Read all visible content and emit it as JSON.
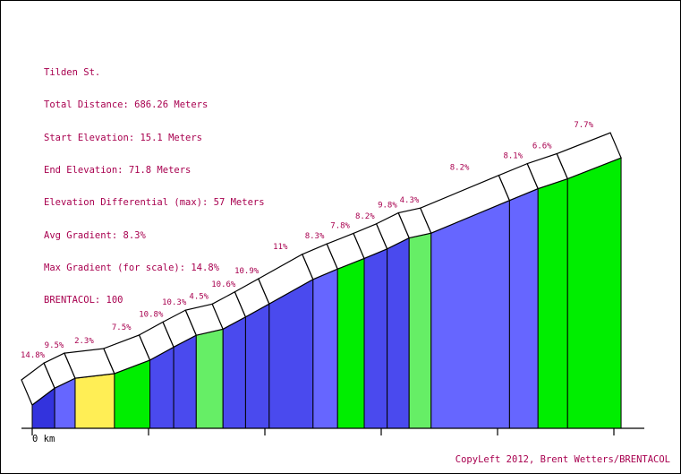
{
  "info": {
    "title": "Tilden St.",
    "total_distance": "Total Distance: 686.26 Meters",
    "start_elevation": "Start Elevation: 15.1 Meters",
    "end_elevation": "End Elevation: 71.8 Meters",
    "elevation_diff": "Elevation Differential (max): 57 Meters",
    "avg_gradient": "Avg Gradient: 8.3%",
    "max_gradient": "Max Gradient (for scale): 14.8%",
    "brentacol": "BRENTACOL: 100"
  },
  "credit": "CopyLeft 2012, Brent Wetters/BRENTACOL",
  "colors": {
    "dark_blue": "#3333dd",
    "medium_blue": "#4a4aee",
    "light_blue": "#6666ff",
    "yellow": "#ffee55",
    "green": "#00ee00",
    "light_green": "#66ee66",
    "label": "#a8004f"
  },
  "chart_data": {
    "type": "area",
    "title": "Tilden St.",
    "xlabel": "",
    "ylabel": "",
    "x_start_label": "0 km",
    "xlim": [
      0,
      686.26
    ],
    "ylim": [
      15.1,
      71.8
    ],
    "segments": [
      {
        "start_m": 0,
        "end_m": 19.3,
        "gradient": "14.8%",
        "color": "dark_blue"
      },
      {
        "start_m": 19.3,
        "end_m": 36.9,
        "gradient": "9.5%",
        "color": "light_blue"
      },
      {
        "start_m": 36.9,
        "end_m": 70.7,
        "gradient": "2.3%",
        "color": "yellow"
      },
      {
        "start_m": 70.7,
        "end_m": 101.2,
        "gradient": "7.5%",
        "color": "green"
      },
      {
        "start_m": 101.2,
        "end_m": 121.6,
        "gradient": "10.8%",
        "color": "medium_blue"
      },
      {
        "start_m": 121.6,
        "end_m": 141.0,
        "gradient": "10.3%",
        "color": "medium_blue"
      },
      {
        "start_m": 141.0,
        "end_m": 164.0,
        "gradient": "4.5%",
        "color": "light_green"
      },
      {
        "start_m": 164.0,
        "end_m": 183.4,
        "gradient": "10.6%",
        "color": "medium_blue"
      },
      {
        "start_m": 183.4,
        "end_m": 203.7,
        "gradient": "10.9%",
        "color": "medium_blue"
      },
      {
        "start_m": 203.7,
        "end_m": 241.4,
        "gradient": "11%",
        "color": "medium_blue"
      },
      {
        "start_m": 241.4,
        "end_m": 262.5,
        "gradient": "8.3%",
        "color": "light_blue"
      },
      {
        "start_m": 262.5,
        "end_m": 285.4,
        "gradient": "7.8%",
        "color": "green"
      },
      {
        "start_m": 285.4,
        "end_m": 305.1,
        "gradient": "8.2%",
        "color": "medium_blue"
      },
      {
        "start_m": 305.1,
        "end_m": 324.0,
        "gradient": "9.8%",
        "color": "medium_blue"
      },
      {
        "start_m": 324.0,
        "end_m": 342.9,
        "gradient": "4.3%",
        "color": "light_green"
      },
      {
        "start_m": 342.9,
        "end_m": 410.3,
        "gradient": "8.2%",
        "color": "light_blue"
      },
      {
        "start_m": 410.3,
        "end_m": 434.8,
        "gradient": "8.1%",
        "color": "light_blue"
      },
      {
        "start_m": 434.8,
        "end_m": 460.2,
        "gradient": "6.6%",
        "color": "green"
      },
      {
        "start_m": 460.2,
        "end_m": 506.2,
        "gradient": "7.7%",
        "color": "green"
      }
    ]
  }
}
